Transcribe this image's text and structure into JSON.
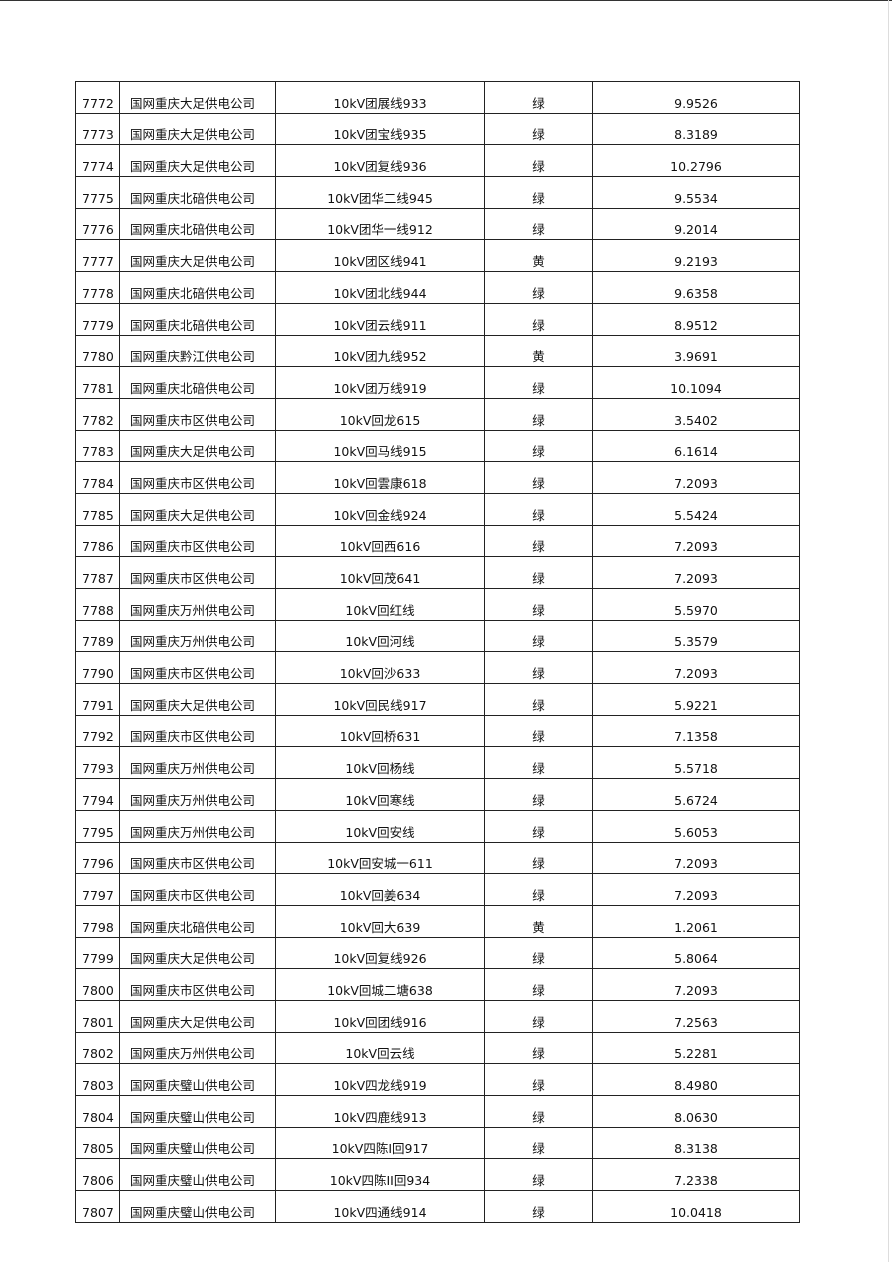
{
  "table": {
    "rows": [
      [
        "7772",
        "国网重庆大足供电公司",
        "10kV团展线933",
        "绿",
        "9.9526"
      ],
      [
        "7773",
        "国网重庆大足供电公司",
        "10kV团宝线935",
        "绿",
        "8.3189"
      ],
      [
        "7774",
        "国网重庆大足供电公司",
        "10kV团复线936",
        "绿",
        "10.2796"
      ],
      [
        "7775",
        "国网重庆北碚供电公司",
        "10kV团华二线945",
        "绿",
        "9.5534"
      ],
      [
        "7776",
        "国网重庆北碚供电公司",
        "10kV团华一线912",
        "绿",
        "9.2014"
      ],
      [
        "7777",
        "国网重庆大足供电公司",
        "10kV团区线941",
        "黄",
        "9.2193"
      ],
      [
        "7778",
        "国网重庆北碚供电公司",
        "10kV团北线944",
        "绿",
        "9.6358"
      ],
      [
        "7779",
        "国网重庆北碚供电公司",
        "10kV团云线911",
        "绿",
        "8.9512"
      ],
      [
        "7780",
        "国网重庆黔江供电公司",
        "10kV团九线952",
        "黄",
        "3.9691"
      ],
      [
        "7781",
        "国网重庆北碚供电公司",
        "10kV团万线919",
        "绿",
        "10.1094"
      ],
      [
        "7782",
        "国网重庆市区供电公司",
        "10kV回龙615",
        "绿",
        "3.5402"
      ],
      [
        "7783",
        "国网重庆大足供电公司",
        "10kV回马线915",
        "绿",
        "6.1614"
      ],
      [
        "7784",
        "国网重庆市区供电公司",
        "10kV回雲康618",
        "绿",
        "7.2093"
      ],
      [
        "7785",
        "国网重庆大足供电公司",
        "10kV回金线924",
        "绿",
        "5.5424"
      ],
      [
        "7786",
        "国网重庆市区供电公司",
        "10kV回西616",
        "绿",
        "7.2093"
      ],
      [
        "7787",
        "国网重庆市区供电公司",
        "10kV回茂641",
        "绿",
        "7.2093"
      ],
      [
        "7788",
        "国网重庆万州供电公司",
        "10kV回红线",
        "绿",
        "5.5970"
      ],
      [
        "7789",
        "国网重庆万州供电公司",
        "10kV回河线",
        "绿",
        "5.3579"
      ],
      [
        "7790",
        "国网重庆市区供电公司",
        "10kV回沙633",
        "绿",
        "7.2093"
      ],
      [
        "7791",
        "国网重庆大足供电公司",
        "10kV回民线917",
        "绿",
        "5.9221"
      ],
      [
        "7792",
        "国网重庆市区供电公司",
        "10kV回桥631",
        "绿",
        "7.1358"
      ],
      [
        "7793",
        "国网重庆万州供电公司",
        "10kV回杨线",
        "绿",
        "5.5718"
      ],
      [
        "7794",
        "国网重庆万州供电公司",
        "10kV回寒线",
        "绿",
        "5.6724"
      ],
      [
        "7795",
        "国网重庆万州供电公司",
        "10kV回安线",
        "绿",
        "5.6053"
      ],
      [
        "7796",
        "国网重庆市区供电公司",
        "10kV回安城一611",
        "绿",
        "7.2093"
      ],
      [
        "7797",
        "国网重庆市区供电公司",
        "10kV回姜634",
        "绿",
        "7.2093"
      ],
      [
        "7798",
        "国网重庆北碚供电公司",
        "10kV回大639",
        "黄",
        "1.2061"
      ],
      [
        "7799",
        "国网重庆大足供电公司",
        "10kV回复线926",
        "绿",
        "5.8064"
      ],
      [
        "7800",
        "国网重庆市区供电公司",
        "10kV回城二塘638",
        "绿",
        "7.2093"
      ],
      [
        "7801",
        "国网重庆大足供电公司",
        "10kV回团线916",
        "绿",
        "7.2563"
      ],
      [
        "7802",
        "国网重庆万州供电公司",
        "10kV回云线",
        "绿",
        "5.2281"
      ],
      [
        "7803",
        "国网重庆璧山供电公司",
        "10kV四龙线919",
        "绿",
        "8.4980"
      ],
      [
        "7804",
        "国网重庆璧山供电公司",
        "10kV四鹿线913",
        "绿",
        "8.0630"
      ],
      [
        "7805",
        "国网重庆璧山供电公司",
        "10kV四陈I回917",
        "绿",
        "8.3138"
      ],
      [
        "7806",
        "国网重庆璧山供电公司",
        "10kV四陈II回934",
        "绿",
        "7.2338"
      ],
      [
        "7807",
        "国网重庆璧山供电公司",
        "10kV四通线914",
        "绿",
        "10.0418"
      ]
    ]
  }
}
